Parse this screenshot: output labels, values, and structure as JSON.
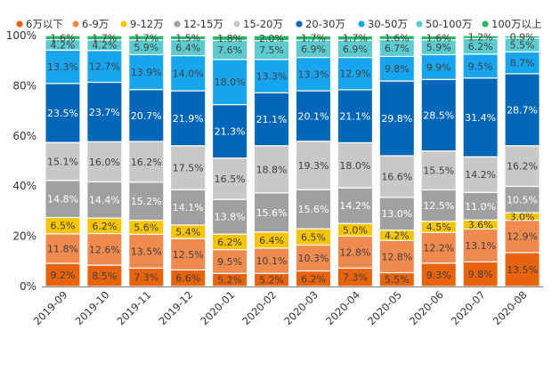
{
  "chart_data": {
    "type": "bar",
    "stacked": true,
    "percent": true,
    "title": "",
    "xlabel": "",
    "ylabel": "",
    "ylim": [
      0,
      100
    ],
    "y_ticks": [
      "0%",
      "20%",
      "40%",
      "60%",
      "80%",
      "100%"
    ],
    "legend_position": "top",
    "grid": false,
    "categories": [
      "2019-09",
      "2019-10",
      "2019-11",
      "2019-12",
      "2020-01",
      "2020-02",
      "2020-03",
      "2020-04",
      "2020-05",
      "2020-06",
      "2020-07",
      "2020-08"
    ],
    "series": [
      {
        "name": "6万以下",
        "color": "#e8630c",
        "values": [
          9.2,
          8.5,
          7.3,
          6.6,
          5.2,
          5.2,
          6.2,
          7.3,
          5.5,
          9.3,
          9.8,
          13.5
        ]
      },
      {
        "name": "6-9万",
        "color": "#f08a4f",
        "values": [
          11.8,
          12.6,
          13.5,
          12.5,
          9.5,
          10.1,
          10.3,
          12.8,
          12.8,
          12.2,
          13.1,
          12.9
        ]
      },
      {
        "name": "9-12万",
        "color": "#f7c400",
        "values": [
          6.5,
          6.2,
          5.6,
          5.4,
          6.2,
          6.4,
          6.5,
          5.0,
          4.2,
          4.5,
          3.6,
          3.0
        ]
      },
      {
        "name": "12-15万",
        "color": "#a0a0a0",
        "values": [
          14.8,
          14.4,
          15.2,
          14.1,
          13.8,
          15.6,
          15.6,
          14.2,
          13.0,
          12.5,
          11.0,
          10.5
        ]
      },
      {
        "name": "15-20万",
        "color": "#c8c8c8",
        "values": [
          15.1,
          16.0,
          16.2,
          17.5,
          16.5,
          18.8,
          19.3,
          18.0,
          16.6,
          15.5,
          14.2,
          16.2
        ]
      },
      {
        "name": "20-30万",
        "color": "#0067b8",
        "values": [
          23.5,
          23.7,
          20.7,
          21.9,
          21.3,
          21.1,
          20.1,
          21.1,
          29.8,
          28.5,
          31.4,
          28.7
        ]
      },
      {
        "name": "30-50万",
        "color": "#18a5f0",
        "values": [
          13.3,
          12.7,
          13.9,
          14.0,
          18.0,
          13.3,
          13.3,
          12.9,
          9.8,
          9.9,
          9.5,
          8.7
        ]
      },
      {
        "name": "50-100万",
        "color": "#5ccbd0",
        "values": [
          4.2,
          4.2,
          5.9,
          6.4,
          7.6,
          7.5,
          6.9,
          6.9,
          6.7,
          5.9,
          6.2,
          5.5
        ]
      },
      {
        "name": "100万以上",
        "color": "#22b86a",
        "values": [
          1.6,
          1.7,
          1.7,
          1.5,
          1.8,
          2.0,
          1.7,
          1.7,
          1.6,
          1.6,
          1.2,
          0.9
        ]
      }
    ]
  }
}
